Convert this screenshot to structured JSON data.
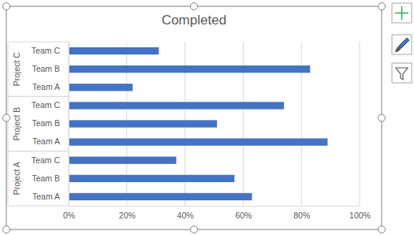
{
  "chart_data": {
    "type": "bar",
    "title": "Completed",
    "orientation": "horizontal",
    "categories": [
      {
        "name": "Project A",
        "items": [
          "Team A",
          "Team B",
          "Team C"
        ]
      },
      {
        "name": "Project B",
        "items": [
          "Team A",
          "Team B",
          "Team C"
        ]
      },
      {
        "name": "Project C",
        "items": [
          "Team A",
          "Team B",
          "Team C"
        ]
      }
    ],
    "values": [
      [
        63,
        57,
        37
      ],
      [
        89,
        51,
        74
      ],
      [
        22,
        83,
        31
      ]
    ],
    "color": "#4472c4",
    "xlim": [
      0,
      100
    ],
    "xticks": [
      {
        "value": 0,
        "label": "0%"
      },
      {
        "value": 20,
        "label": "20%"
      },
      {
        "value": 40,
        "label": "40%"
      },
      {
        "value": 60,
        "label": "60%"
      },
      {
        "value": 80,
        "label": "80%"
      },
      {
        "value": 100,
        "label": "100%"
      }
    ],
    "grid": true
  }
}
